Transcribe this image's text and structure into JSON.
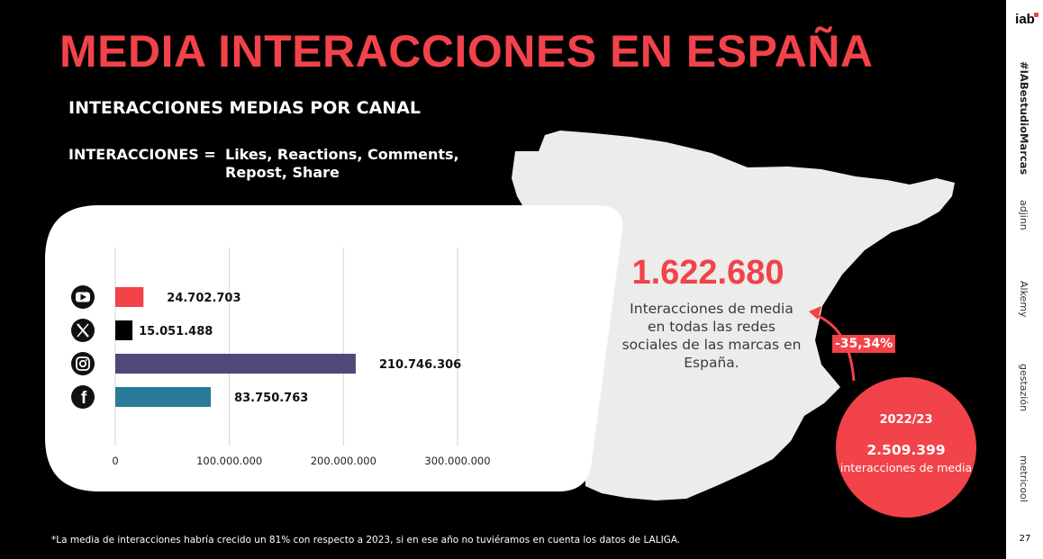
{
  "title": "MEDIA INTERACCIONES EN ESPAÑA",
  "subtitle": "INTERACCIONES MEDIAS POR CANAL",
  "definition": {
    "label": "INTERACCIONES =",
    "text": "Likes, Reactions, Comments, Repost, Share"
  },
  "chart_data": {
    "type": "bar",
    "orientation": "horizontal",
    "categories": [
      "YouTube",
      "X",
      "Instagram",
      "Facebook"
    ],
    "icons": [
      "youtube-icon",
      "x-icon",
      "instagram-icon",
      "facebook-icon"
    ],
    "values": [
      24702703,
      15051488,
      210746306,
      83750763
    ],
    "value_labels": [
      "24.702.703",
      "15.051.488",
      "210.746.306",
      "83.750.763"
    ],
    "colors": [
      "#f2424a",
      "#000000",
      "#4f4878",
      "#2a7a99"
    ],
    "xlim": [
      0,
      300000000
    ],
    "xticks": [
      0,
      100000000,
      200000000,
      300000000
    ],
    "xtick_labels": [
      "0",
      "100.000.000",
      "200.000.000",
      "300.000.000"
    ],
    "grid": true,
    "title": "",
    "xlabel": "",
    "ylabel": ""
  },
  "highlight": {
    "value": "1.622.680",
    "caption": "Interacciones de media en todas las redes sociales de las marcas en España."
  },
  "comparison": {
    "change": "-35,34%",
    "year": "2022/23",
    "value": "2.509.399",
    "label": "interacciones de media"
  },
  "footnote": "*La media de interacciones habría crecido un 81% con respecto a 2023, si en ese año no tuviéramos en cuenta los datos de LALIGA.",
  "sidebar": {
    "logo": "iab",
    "hashtag": "#IABestudioMarcas",
    "brands": [
      "adjinn",
      "Alkemy",
      "gestazión",
      "metricool"
    ],
    "page_number": "27"
  },
  "colors": {
    "accent": "#f2424a",
    "background": "#000000",
    "map": "#ececea"
  }
}
